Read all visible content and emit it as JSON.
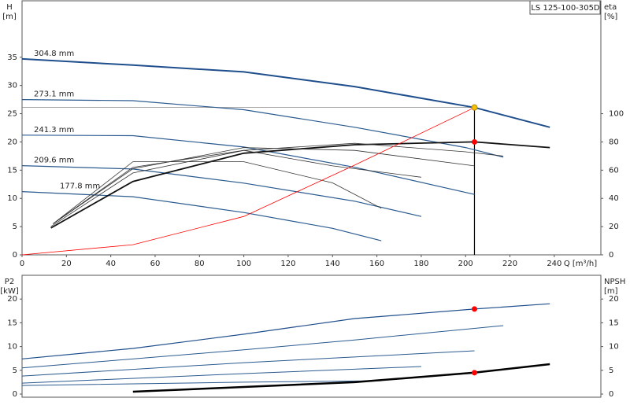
{
  "chart_data": [
    {
      "type": "line",
      "title": "LS 125-100-305D",
      "ylabel": "H",
      "yunit": "[m]",
      "y2label": "eta",
      "y2unit": "[%]",
      "xlabel": "Q [m³/h]",
      "xlim": [
        0,
        261
      ],
      "xticks": [
        0,
        20,
        40,
        60,
        80,
        100,
        120,
        140,
        160,
        180,
        200,
        220,
        240
      ],
      "ylim": [
        0,
        45
      ],
      "yticks": [
        0,
        5,
        10,
        15,
        20,
        25,
        30,
        35
      ],
      "y2lim": [
        0,
        180
      ],
      "y2ticks": [
        0,
        20,
        40,
        60,
        80,
        100
      ],
      "series": [
        {
          "name": "304.8 mm",
          "color": "#1f4e8c",
          "line_width": 2,
          "x": [
            0,
            50,
            100,
            150,
            204,
            238
          ],
          "values": [
            34.7,
            33.6,
            32.4,
            29.8,
            26.1,
            22.6
          ]
        },
        {
          "name": "273.1 mm",
          "color": "#2a5a8f",
          "line_width": 1.2,
          "x": [
            0,
            50,
            100,
            150,
            200,
            217
          ],
          "values": [
            27.5,
            27.3,
            25.7,
            22.6,
            19.0,
            17.3
          ]
        },
        {
          "name": "241.3 mm",
          "color": "#2a5a8f",
          "line_width": 1.2,
          "x": [
            0,
            50,
            100,
            150,
            204
          ],
          "values": [
            21.2,
            21.1,
            19.1,
            15.5,
            10.7
          ]
        },
        {
          "name": "209.6 mm",
          "color": "#2a5a8f",
          "line_width": 1.2,
          "x": [
            0,
            50,
            100,
            150,
            180
          ],
          "values": [
            15.8,
            15.2,
            12.7,
            9.5,
            6.8
          ]
        },
        {
          "name": "177.8 mm",
          "color": "#2a5a8f",
          "line_width": 1.2,
          "x": [
            0,
            50,
            100,
            140,
            162
          ],
          "values": [
            11.2,
            10.3,
            7.5,
            4.7,
            2.5
          ]
        },
        {
          "color": "#111111",
          "line_width": 1.8,
          "axis": "y2",
          "x": [
            13,
            50,
            100,
            150,
            204,
            238
          ],
          "values": [
            19,
            52,
            72,
            78,
            80,
            76
          ]
        },
        {
          "color": "#333333",
          "line_width": 0.8,
          "axis": "y2",
          "x": [
            13,
            50,
            100,
            150,
            200,
            217
          ],
          "values": [
            20,
            58,
            74,
            79,
            73,
            70
          ]
        },
        {
          "color": "#333333",
          "line_width": 0.8,
          "axis": "y2",
          "x": [
            14,
            50,
            100,
            150,
            204
          ],
          "values": [
            22,
            61,
            76,
            74,
            63
          ]
        },
        {
          "color": "#333333",
          "line_width": 0.8,
          "axis": "y2",
          "x": [
            14,
            50,
            100,
            140,
            180
          ],
          "values": [
            22,
            62,
            74,
            63,
            55
          ]
        },
        {
          "color": "#333333",
          "line_width": 0.8,
          "axis": "y2",
          "x": [
            14,
            50,
            100,
            140,
            162
          ],
          "values": [
            22,
            66,
            66,
            51,
            33
          ]
        },
        {
          "color": "#ff0000",
          "line_width": 0.8,
          "x": [
            0,
            50,
            100,
            150,
            204
          ],
          "values": [
            0,
            1.8,
            6.8,
            15.9,
            26.1
          ]
        }
      ],
      "points": [
        {
          "x": 204,
          "y": 26.1,
          "color": "#f5c000"
        },
        {
          "x": 204,
          "y": 80,
          "axis": "y2",
          "color": "#ff0000"
        }
      ]
    },
    {
      "type": "line",
      "ylabel": "P2",
      "yunit": "[kW]",
      "y2label": "NPSH",
      "y2unit": "[m]",
      "xlim": [
        0,
        261
      ],
      "ylim": [
        -0.66,
        25
      ],
      "yticks": [
        0,
        5,
        10,
        15,
        20
      ],
      "y2lim": [
        -0.66,
        25
      ],
      "y2ticks": [
        0,
        5,
        10,
        15,
        20
      ],
      "series": [
        {
          "color": "#1f4e8c",
          "line_width": 1.2,
          "x": [
            0,
            50,
            100,
            150,
            204,
            238
          ],
          "values": [
            7.4,
            9.6,
            12.6,
            15.9,
            17.9,
            19.0
          ]
        },
        {
          "color": "#2a5a8f",
          "line_width": 1,
          "x": [
            0,
            100,
            150,
            217
          ],
          "values": [
            5.5,
            9.3,
            11.4,
            14.4
          ]
        },
        {
          "color": "#2a5a8f",
          "line_width": 1,
          "x": [
            0,
            100,
            204
          ],
          "values": [
            3.8,
            6.6,
            9.1
          ]
        },
        {
          "color": "#2a5a8f",
          "line_width": 1,
          "x": [
            0,
            100,
            180
          ],
          "values": [
            2.3,
            4.3,
            5.8
          ]
        },
        {
          "color": "#2a5a8f",
          "line_width": 1,
          "x": [
            0,
            100,
            162
          ],
          "values": [
            1.8,
            2.5,
            2.8
          ]
        },
        {
          "color": "#000000",
          "line_width": 2.5,
          "axis": "y2",
          "x": [
            50,
            100,
            150,
            204,
            238
          ],
          "values": [
            0.5,
            1.5,
            2.5,
            4.5,
            6.3
          ]
        }
      ],
      "points": [
        {
          "x": 204,
          "y": 17.9,
          "color": "#ff0000"
        },
        {
          "x": 204,
          "y": 4.5,
          "axis": "y2",
          "color": "#ff0000"
        }
      ]
    }
  ]
}
